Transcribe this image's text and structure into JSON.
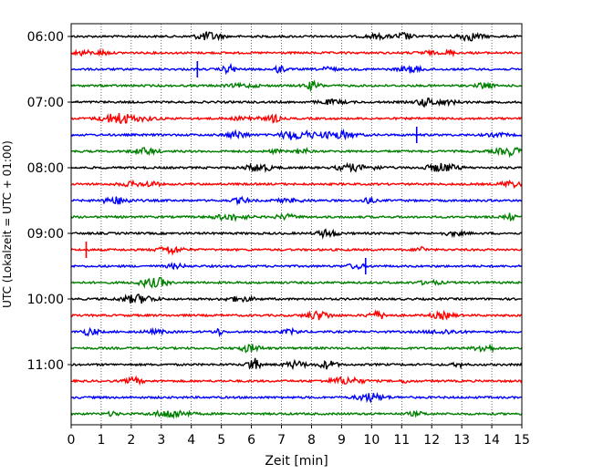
{
  "chart_data": {
    "type": "line",
    "title": "",
    "xlabel": "Zeit  [min]",
    "ylabel": "UTC (Lokalzeit = UTC + 01:00)",
    "xlim": [
      0,
      15
    ],
    "x_ticks": [
      "0",
      "1",
      "2",
      "3",
      "4",
      "5",
      "6",
      "7",
      "8",
      "9",
      "10",
      "11",
      "12",
      "13",
      "14",
      "15"
    ],
    "y_ticks": [
      "06:00",
      "07:00",
      "08:00",
      "09:00",
      "10:00",
      "11:00"
    ],
    "grid": "vertical dotted",
    "trace_interval_min": 15,
    "start_time": "06:00",
    "trace_colors": [
      "#000000",
      "#ff0000",
      "#0000ff",
      "#008000"
    ],
    "series": [
      {
        "start": "06:00",
        "color": "#000000"
      },
      {
        "start": "06:15",
        "color": "#ff0000"
      },
      {
        "start": "06:30",
        "color": "#0000ff"
      },
      {
        "start": "06:45",
        "color": "#008000"
      },
      {
        "start": "07:00",
        "color": "#000000"
      },
      {
        "start": "07:15",
        "color": "#ff0000"
      },
      {
        "start": "07:30",
        "color": "#0000ff"
      },
      {
        "start": "07:45",
        "color": "#008000"
      },
      {
        "start": "08:00",
        "color": "#000000"
      },
      {
        "start": "08:15",
        "color": "#ff0000"
      },
      {
        "start": "08:30",
        "color": "#0000ff"
      },
      {
        "start": "08:45",
        "color": "#008000"
      },
      {
        "start": "09:00",
        "color": "#000000"
      },
      {
        "start": "09:15",
        "color": "#ff0000"
      },
      {
        "start": "09:30",
        "color": "#0000ff"
      },
      {
        "start": "09:45",
        "color": "#008000"
      },
      {
        "start": "10:00",
        "color": "#000000"
      },
      {
        "start": "10:15",
        "color": "#ff0000"
      },
      {
        "start": "10:30",
        "color": "#0000ff"
      },
      {
        "start": "10:45",
        "color": "#008000"
      },
      {
        "start": "11:00",
        "color": "#000000"
      },
      {
        "start": "11:15",
        "color": "#ff0000"
      },
      {
        "start": "11:30",
        "color": "#0000ff"
      },
      {
        "start": "11:45",
        "color": "#008000"
      }
    ]
  }
}
